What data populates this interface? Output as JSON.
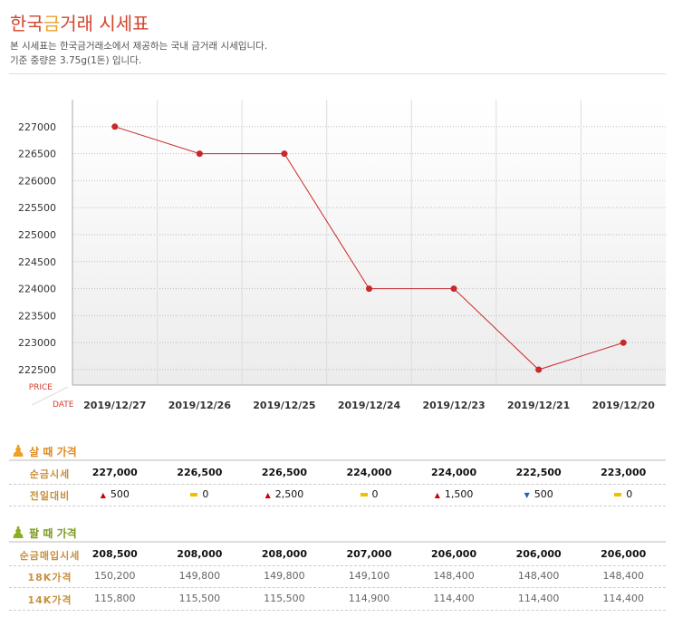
{
  "header": {
    "title_a": "한국",
    "title_b": "금",
    "title_c": "거래 시세표",
    "desc1": "본 시세표는 한국금거래소에서 제공하는 국내 금거래 시세입니다.",
    "desc2": "기준 중량은 3.75g(1돈) 입니다."
  },
  "chart_data": {
    "type": "line",
    "categories": [
      "2019/12/27",
      "2019/12/26",
      "2019/12/25",
      "2019/12/24",
      "2019/12/23",
      "2019/12/21",
      "2019/12/20"
    ],
    "values": [
      227000,
      226500,
      226500,
      224000,
      224000,
      222500,
      223000
    ],
    "yticks": [
      227000,
      226500,
      226000,
      225500,
      225000,
      224500,
      224000,
      223500,
      223000,
      222500
    ],
    "ylim": [
      222215,
      227500
    ],
    "ylabel": "PRICE",
    "xlabel": "DATE",
    "color": "#c8282a"
  },
  "buy": {
    "title": "살 때 가격",
    "row1_label": "순금시세",
    "row1": [
      "227,000",
      "226,500",
      "226,500",
      "224,000",
      "224,000",
      "222,500",
      "223,000"
    ],
    "row2_label": "전일대비",
    "row2": [
      {
        "dir": "up",
        "v": "500"
      },
      {
        "dir": "eq",
        "v": "0"
      },
      {
        "dir": "up",
        "v": "2,500"
      },
      {
        "dir": "eq",
        "v": "0"
      },
      {
        "dir": "up",
        "v": "1,500"
      },
      {
        "dir": "down",
        "v": "500"
      },
      {
        "dir": "eq",
        "v": "0"
      }
    ]
  },
  "sell": {
    "title": "팔 때 가격",
    "row1_label": "순금매입시세",
    "row1": [
      "208,500",
      "208,000",
      "208,000",
      "207,000",
      "206,000",
      "206,000",
      "206,000"
    ],
    "row2_label": "18K가격",
    "row2": [
      "150,200",
      "149,800",
      "149,800",
      "149,100",
      "148,400",
      "148,400",
      "148,400"
    ],
    "row3_label": "14K가격",
    "row3": [
      "115,800",
      "115,500",
      "115,500",
      "114,900",
      "114,400",
      "114,400",
      "114,400"
    ]
  }
}
